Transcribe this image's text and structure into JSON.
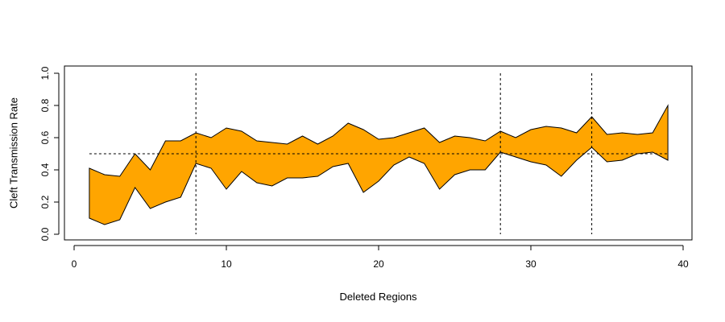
{
  "chart_data": {
    "type": "area",
    "xlabel": "Deleted Regions",
    "ylabel": "Cleft Transmission Rate",
    "xlim": [
      0,
      40
    ],
    "ylim": [
      0,
      1
    ],
    "x_ticks": [
      0,
      10,
      20,
      30,
      40
    ],
    "x_tick_labels": [
      "0",
      "10",
      "20",
      "30",
      "40"
    ],
    "y_ticks": [
      0,
      0.2,
      0.4,
      0.6,
      0.8,
      1
    ],
    "y_tick_labels": [
      "0.0",
      "0.2",
      "0.4",
      "0.6",
      "0.8",
      "1.0"
    ],
    "grid": false,
    "band_color": "#FFA500",
    "x": [
      1,
      2,
      3,
      4,
      5,
      6,
      7,
      8,
      9,
      10,
      11,
      12,
      13,
      14,
      15,
      16,
      17,
      18,
      19,
      20,
      21,
      22,
      23,
      24,
      25,
      26,
      27,
      28,
      29,
      30,
      31,
      32,
      33,
      34,
      35,
      36,
      37,
      38,
      39
    ],
    "upper": [
      0.41,
      0.37,
      0.36,
      0.5,
      0.4,
      0.58,
      0.58,
      0.63,
      0.6,
      0.66,
      0.64,
      0.58,
      0.57,
      0.56,
      0.61,
      0.56,
      0.61,
      0.69,
      0.65,
      0.59,
      0.6,
      0.63,
      0.66,
      0.57,
      0.61,
      0.6,
      0.58,
      0.64,
      0.6,
      0.65,
      0.67,
      0.66,
      0.63,
      0.73,
      0.62,
      0.63,
      0.62,
      0.63,
      0.8
    ],
    "lower": [
      0.1,
      0.06,
      0.09,
      0.29,
      0.16,
      0.2,
      0.23,
      0.44,
      0.41,
      0.28,
      0.39,
      0.32,
      0.3,
      0.35,
      0.35,
      0.36,
      0.42,
      0.44,
      0.26,
      0.33,
      0.43,
      0.48,
      0.44,
      0.28,
      0.37,
      0.4,
      0.4,
      0.51,
      0.48,
      0.45,
      0.43,
      0.36,
      0.46,
      0.54,
      0.45,
      0.46,
      0.5,
      0.51,
      0.46
    ],
    "reference_line_y": 0.5,
    "reference_line_x_range": [
      1,
      39
    ],
    "vertical_lines_x": [
      8,
      28,
      34
    ]
  }
}
